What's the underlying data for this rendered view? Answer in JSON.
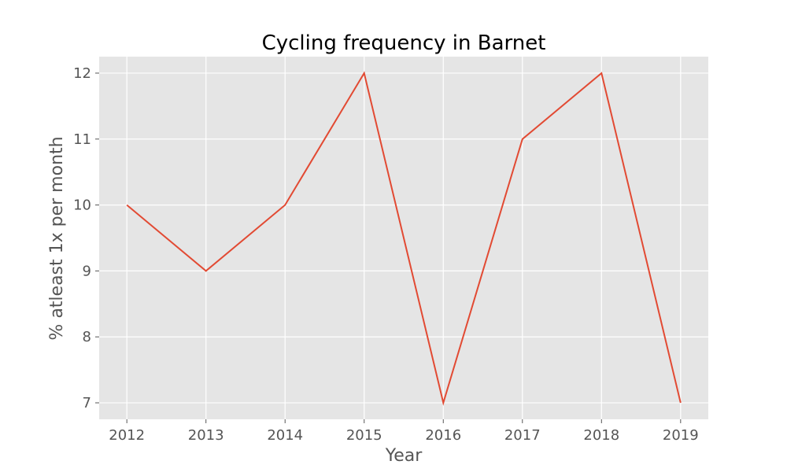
{
  "chart_data": {
    "type": "line",
    "title": "Cycling frequency in Barnet",
    "xlabel": "Year",
    "ylabel": "% atleast 1x per month",
    "x": [
      2012,
      2013,
      2014,
      2015,
      2016,
      2017,
      2018,
      2019
    ],
    "series": [
      {
        "values": [
          10,
          9,
          10,
          12,
          7,
          11,
          12,
          7
        ],
        "color": "#E24A33"
      }
    ],
    "xticks": [
      "2012",
      "2013",
      "2014",
      "2015",
      "2016",
      "2017",
      "2018",
      "2019"
    ],
    "yticks": [
      "7",
      "8",
      "9",
      "10",
      "11",
      "12"
    ],
    "xlim": [
      2011.65,
      2019.35
    ],
    "ylim": [
      6.75,
      12.25
    ],
    "grid": true,
    "legend": "none",
    "background": "#E5E5E5"
  }
}
